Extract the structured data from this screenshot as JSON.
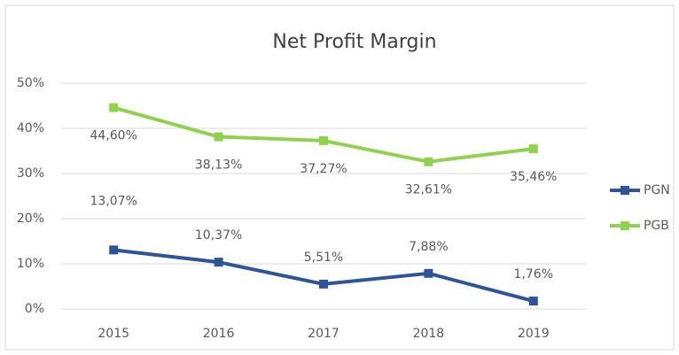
{
  "chart_data": {
    "type": "line",
    "title": "Net Profit Margin",
    "categories": [
      "2015",
      "2016",
      "2017",
      "2018",
      "2019"
    ],
    "series": [
      {
        "name": "PGN",
        "color": "#2f5597",
        "values": [
          13.07,
          10.37,
          5.51,
          7.88,
          1.76
        ],
        "value_labels": [
          "13,07%",
          "10,37%",
          "5,51%",
          "7,88%",
          "1,76%"
        ]
      },
      {
        "name": "PGB",
        "color": "#92d050",
        "values": [
          44.6,
          38.13,
          37.27,
          32.61,
          35.46
        ],
        "value_labels": [
          "44,60%",
          "38,13%",
          "37,27%",
          "32,61%",
          "35,46%"
        ]
      }
    ],
    "ylim": [
      0,
      50
    ],
    "yticks": [
      {
        "value": 0,
        "label": "0%"
      },
      {
        "value": 10,
        "label": "10%"
      },
      {
        "value": 20,
        "label": "20%"
      },
      {
        "value": 30,
        "label": "30%"
      },
      {
        "value": 40,
        "label": "40%"
      },
      {
        "value": 50,
        "label": "50%"
      }
    ],
    "grid": true,
    "legend": "right"
  }
}
